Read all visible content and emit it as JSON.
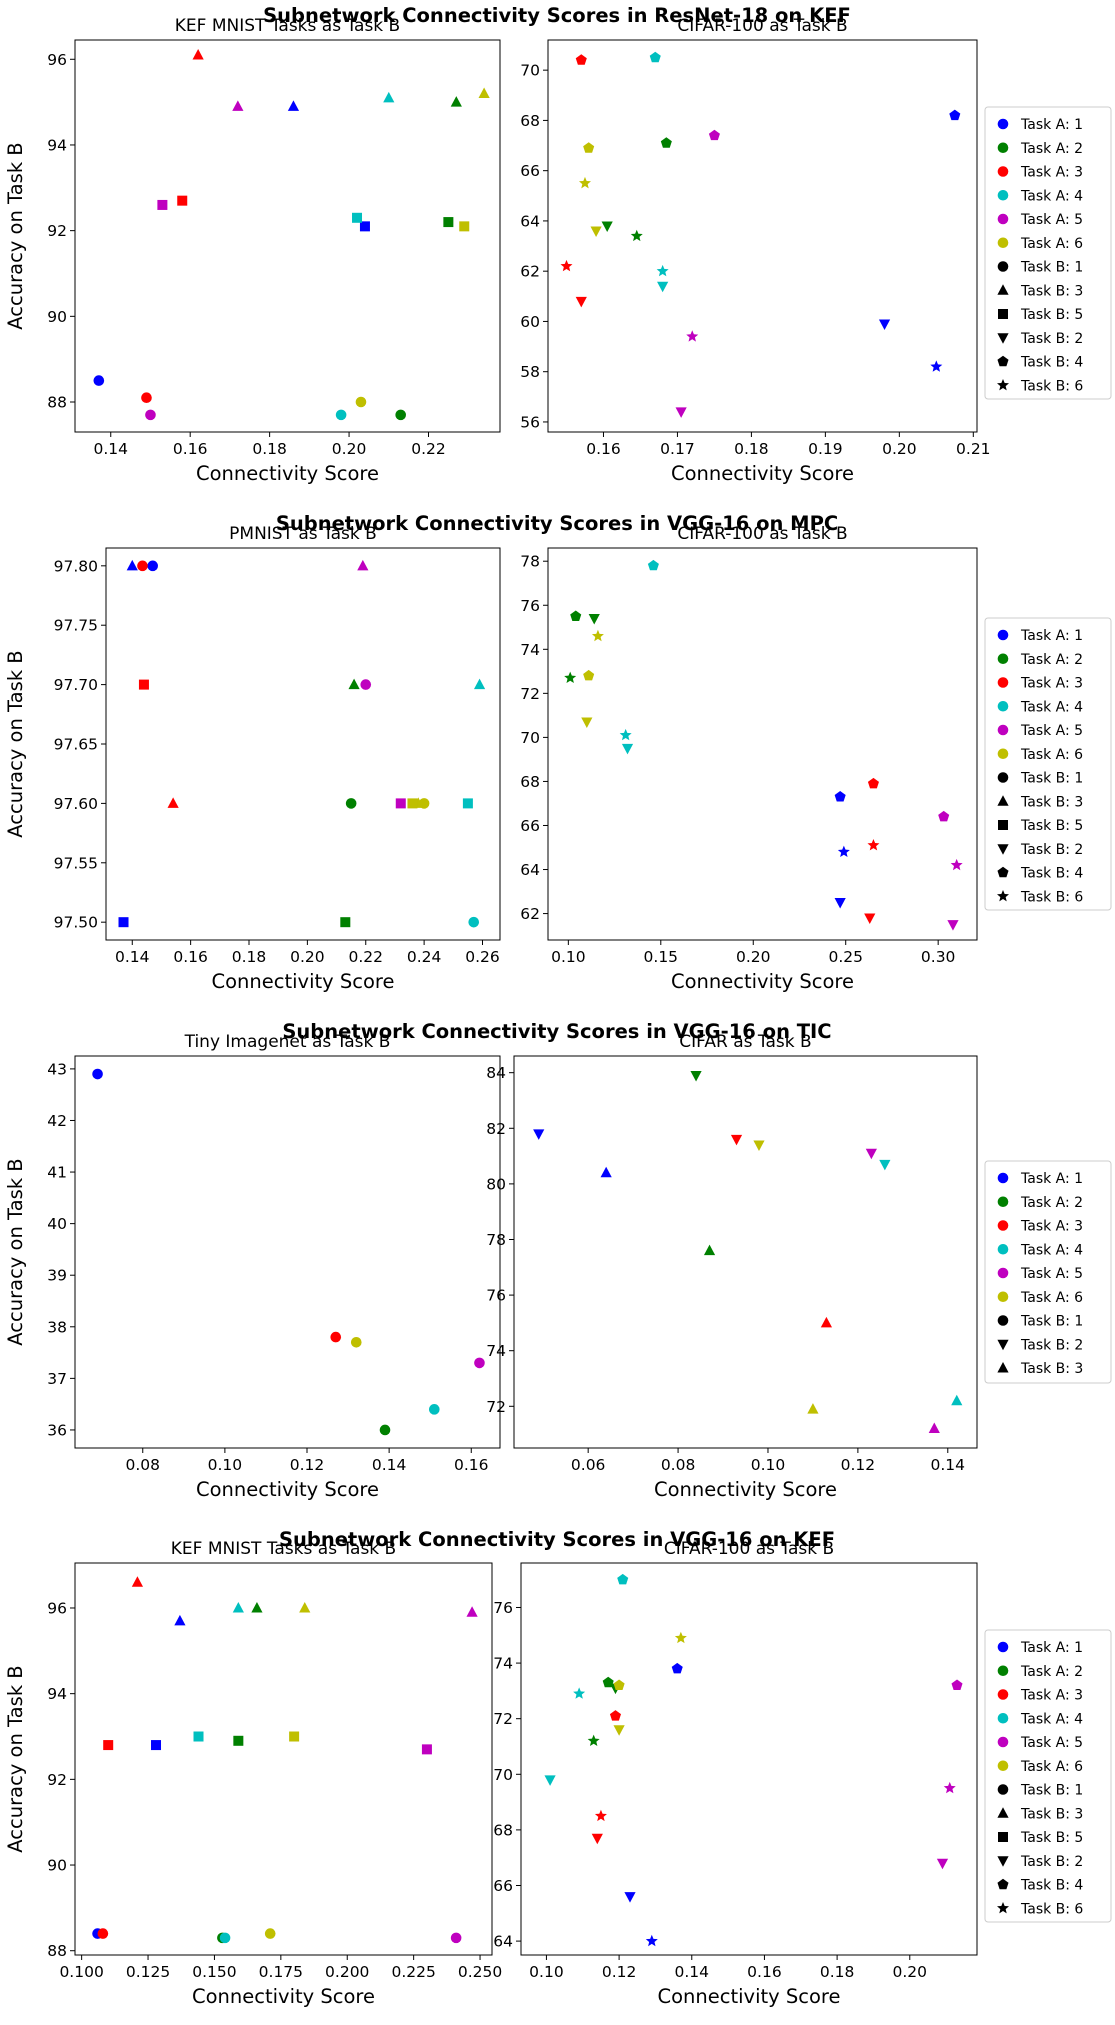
{
  "figure": {
    "section_titles": [
      "Subnetwork Connectivity Scores in ResNet-18 on KEF",
      "Subnetwork Connectivity Scores in VGG-16 on MPC",
      "Subnetwork Connectivity Scores in VGG-16 on TIC",
      "Subnetwork Connectivity Scores in VGG-16 on KEF"
    ]
  },
  "colors": {
    "1": "#0000ff",
    "2": "#008000",
    "3": "#ff0000",
    "4": "#00bfbf",
    "5": "#bf00bf",
    "6": "#bfbf00"
  },
  "marker_shapes": {
    "1": "circle",
    "2": "triangle-down",
    "3": "triangle-up",
    "4": "pentagon",
    "5": "square",
    "6": "star"
  },
  "chart_data": [
    {
      "type": "scatter",
      "title": "KEF MNIST Tasks as Task B",
      "xlabel": "Connectivity Score",
      "ylabel": "Accuracy on Task B",
      "xlim": [
        0.131,
        0.238
      ],
      "ylim": [
        87.3,
        96.45
      ],
      "xticks": [
        "0.14",
        "0.16",
        "0.18",
        "0.20",
        "0.22"
      ],
      "yticks": [
        "88",
        "90",
        "92",
        "94",
        "96"
      ],
      "points": [
        {
          "a": 1,
          "b": 1,
          "x": 0.137,
          "y": 88.5
        },
        {
          "a": 1,
          "b": 3,
          "x": 0.186,
          "y": 94.9
        },
        {
          "a": 1,
          "b": 5,
          "x": 0.204,
          "y": 92.1
        },
        {
          "a": 2,
          "b": 1,
          "x": 0.213,
          "y": 87.7
        },
        {
          "a": 2,
          "b": 3,
          "x": 0.227,
          "y": 95.0
        },
        {
          "a": 2,
          "b": 5,
          "x": 0.225,
          "y": 92.2
        },
        {
          "a": 3,
          "b": 1,
          "x": 0.149,
          "y": 88.1
        },
        {
          "a": 3,
          "b": 3,
          "x": 0.162,
          "y": 96.1
        },
        {
          "a": 3,
          "b": 5,
          "x": 0.158,
          "y": 92.7
        },
        {
          "a": 4,
          "b": 1,
          "x": 0.198,
          "y": 87.7
        },
        {
          "a": 4,
          "b": 3,
          "x": 0.21,
          "y": 95.1
        },
        {
          "a": 4,
          "b": 5,
          "x": 0.202,
          "y": 92.3
        },
        {
          "a": 5,
          "b": 1,
          "x": 0.15,
          "y": 87.7
        },
        {
          "a": 5,
          "b": 3,
          "x": 0.172,
          "y": 94.9
        },
        {
          "a": 5,
          "b": 5,
          "x": 0.153,
          "y": 92.6
        },
        {
          "a": 6,
          "b": 1,
          "x": 0.203,
          "y": 88.0
        },
        {
          "a": 6,
          "b": 3,
          "x": 0.234,
          "y": 95.2
        },
        {
          "a": 6,
          "b": 5,
          "x": 0.229,
          "y": 92.1
        }
      ]
    },
    {
      "type": "scatter",
      "title": "CIFAR-100 as Task B",
      "xlabel": "Connectivity Score",
      "ylabel": "",
      "xlim": [
        0.1525,
        0.2105
      ],
      "ylim": [
        55.6,
        71.2
      ],
      "xticks": [
        "0.16",
        "0.17",
        "0.18",
        "0.19",
        "0.20",
        "0.21"
      ],
      "yticks": [
        "56",
        "58",
        "60",
        "62",
        "64",
        "66",
        "68",
        "70"
      ],
      "legend_position": "right",
      "legend": [
        "Task A: 1",
        "Task A: 2",
        "Task A: 3",
        "Task A: 4",
        "Task A: 5",
        "Task A: 6",
        "Task B: 1",
        "Task B: 3",
        "Task B: 5",
        "Task B: 2",
        "Task B: 4",
        "Task B: 6"
      ],
      "points": [
        {
          "a": 1,
          "b": 2,
          "x": 0.198,
          "y": 59.9
        },
        {
          "a": 1,
          "b": 4,
          "x": 0.2075,
          "y": 68.2
        },
        {
          "a": 1,
          "b": 6,
          "x": 0.205,
          "y": 58.2
        },
        {
          "a": 2,
          "b": 2,
          "x": 0.1605,
          "y": 63.8
        },
        {
          "a": 2,
          "b": 4,
          "x": 0.1685,
          "y": 67.1
        },
        {
          "a": 2,
          "b": 6,
          "x": 0.1645,
          "y": 63.4
        },
        {
          "a": 3,
          "b": 2,
          "x": 0.157,
          "y": 60.8
        },
        {
          "a": 3,
          "b": 4,
          "x": 0.157,
          "y": 70.4
        },
        {
          "a": 3,
          "b": 6,
          "x": 0.155,
          "y": 62.2
        },
        {
          "a": 4,
          "b": 2,
          "x": 0.168,
          "y": 61.4
        },
        {
          "a": 4,
          "b": 4,
          "x": 0.167,
          "y": 70.5
        },
        {
          "a": 4,
          "b": 6,
          "x": 0.168,
          "y": 62.0
        },
        {
          "a": 5,
          "b": 2,
          "x": 0.1705,
          "y": 56.4
        },
        {
          "a": 5,
          "b": 4,
          "x": 0.175,
          "y": 67.4
        },
        {
          "a": 5,
          "b": 6,
          "x": 0.172,
          "y": 59.4
        },
        {
          "a": 6,
          "b": 2,
          "x": 0.159,
          "y": 63.6
        },
        {
          "a": 6,
          "b": 4,
          "x": 0.158,
          "y": 66.9
        },
        {
          "a": 6,
          "b": 6,
          "x": 0.1575,
          "y": 65.5
        }
      ]
    },
    {
      "type": "scatter",
      "title": "PMNIST as Task B",
      "xlabel": "Connectivity Score",
      "ylabel": "Accuracy on Task B",
      "xlim": [
        0.131,
        0.266
      ],
      "ylim": [
        97.485,
        97.815
      ],
      "xticks": [
        "0.14",
        "0.16",
        "0.18",
        "0.20",
        "0.22",
        "0.24",
        "0.26"
      ],
      "yticks": [
        "97.50",
        "97.55",
        "97.60",
        "97.65",
        "97.70",
        "97.75",
        "97.80"
      ],
      "points": [
        {
          "a": 1,
          "b": 1,
          "x": 0.147,
          "y": 97.8
        },
        {
          "a": 1,
          "b": 3,
          "x": 0.14,
          "y": 97.8
        },
        {
          "a": 1,
          "b": 5,
          "x": 0.137,
          "y": 97.5
        },
        {
          "a": 2,
          "b": 1,
          "x": 0.215,
          "y": 97.6
        },
        {
          "a": 2,
          "b": 3,
          "x": 0.216,
          "y": 97.7
        },
        {
          "a": 2,
          "b": 5,
          "x": 0.213,
          "y": 97.5
        },
        {
          "a": 3,
          "b": 1,
          "x": 0.1435,
          "y": 97.8
        },
        {
          "a": 3,
          "b": 3,
          "x": 0.154,
          "y": 97.6
        },
        {
          "a": 3,
          "b": 5,
          "x": 0.144,
          "y": 97.7
        },
        {
          "a": 4,
          "b": 1,
          "x": 0.257,
          "y": 97.5
        },
        {
          "a": 4,
          "b": 3,
          "x": 0.259,
          "y": 97.7
        },
        {
          "a": 4,
          "b": 5,
          "x": 0.255,
          "y": 97.6
        },
        {
          "a": 5,
          "b": 1,
          "x": 0.22,
          "y": 97.7
        },
        {
          "a": 5,
          "b": 3,
          "x": 0.219,
          "y": 97.8
        },
        {
          "a": 5,
          "b": 5,
          "x": 0.232,
          "y": 97.6
        },
        {
          "a": 6,
          "b": 1,
          "x": 0.24,
          "y": 97.6
        },
        {
          "a": 6,
          "b": 3,
          "x": 0.238,
          "y": 97.6
        },
        {
          "a": 6,
          "b": 5,
          "x": 0.236,
          "y": 97.6
        }
      ]
    },
    {
      "type": "scatter",
      "title": "CIFAR-100 as Task B",
      "xlabel": "Connectivity Score",
      "ylabel": "",
      "xlim": [
        0.089,
        0.321
      ],
      "ylim": [
        60.8,
        78.6
      ],
      "xticks": [
        "0.10",
        "0.15",
        "0.20",
        "0.25",
        "0.30"
      ],
      "yticks": [
        "62",
        "64",
        "66",
        "68",
        "70",
        "72",
        "74",
        "76",
        "78"
      ],
      "legend_position": "right",
      "legend": [
        "Task A: 1",
        "Task A: 2",
        "Task A: 3",
        "Task A: 4",
        "Task A: 5",
        "Task A: 6",
        "Task B: 1",
        "Task B: 3",
        "Task B: 5",
        "Task B: 2",
        "Task B: 4",
        "Task B: 6"
      ],
      "points": [
        {
          "a": 1,
          "b": 2,
          "x": 0.247,
          "y": 62.5
        },
        {
          "a": 1,
          "b": 4,
          "x": 0.247,
          "y": 67.3
        },
        {
          "a": 1,
          "b": 6,
          "x": 0.249,
          "y": 64.8
        },
        {
          "a": 2,
          "b": 2,
          "x": 0.114,
          "y": 75.4
        },
        {
          "a": 2,
          "b": 4,
          "x": 0.104,
          "y": 75.5
        },
        {
          "a": 2,
          "b": 6,
          "x": 0.101,
          "y": 72.7
        },
        {
          "a": 3,
          "b": 2,
          "x": 0.263,
          "y": 61.8
        },
        {
          "a": 3,
          "b": 4,
          "x": 0.265,
          "y": 67.9
        },
        {
          "a": 3,
          "b": 6,
          "x": 0.265,
          "y": 65.1
        },
        {
          "a": 4,
          "b": 2,
          "x": 0.132,
          "y": 69.5
        },
        {
          "a": 4,
          "b": 4,
          "x": 0.146,
          "y": 77.8
        },
        {
          "a": 4,
          "b": 6,
          "x": 0.131,
          "y": 70.1
        },
        {
          "a": 5,
          "b": 2,
          "x": 0.308,
          "y": 61.5
        },
        {
          "a": 5,
          "b": 4,
          "x": 0.303,
          "y": 66.4
        },
        {
          "a": 5,
          "b": 6,
          "x": 0.31,
          "y": 64.2
        },
        {
          "a": 6,
          "b": 2,
          "x": 0.11,
          "y": 70.7
        },
        {
          "a": 6,
          "b": 4,
          "x": 0.111,
          "y": 72.8
        },
        {
          "a": 6,
          "b": 6,
          "x": 0.116,
          "y": 74.6
        }
      ]
    },
    {
      "type": "scatter",
      "title": "Tiny Imagenet as Task B",
      "xlabel": "Connectivity Score",
      "ylabel": "Accuracy on Task B",
      "xlim": [
        0.0635,
        0.167
      ],
      "ylim": [
        35.65,
        43.25
      ],
      "xticks": [
        "0.08",
        "0.10",
        "0.12",
        "0.14",
        "0.16"
      ],
      "yticks": [
        "36",
        "37",
        "38",
        "39",
        "40",
        "41",
        "42",
        "43"
      ],
      "points": [
        {
          "a": 1,
          "b": 1,
          "x": 0.069,
          "y": 42.9
        },
        {
          "a": 2,
          "b": 1,
          "x": 0.139,
          "y": 36.0
        },
        {
          "a": 3,
          "b": 1,
          "x": 0.127,
          "y": 37.8
        },
        {
          "a": 4,
          "b": 1,
          "x": 0.151,
          "y": 36.4
        },
        {
          "a": 5,
          "b": 1,
          "x": 0.162,
          "y": 37.3
        },
        {
          "a": 6,
          "b": 1,
          "x": 0.132,
          "y": 37.7
        }
      ]
    },
    {
      "type": "scatter",
      "title": "CIFAR as Task B",
      "xlabel": "Connectivity Score",
      "ylabel": "",
      "xlim": [
        0.0435,
        0.1465
      ],
      "ylim": [
        70.5,
        84.6
      ],
      "xticks": [
        "0.06",
        "0.08",
        "0.10",
        "0.12",
        "0.14"
      ],
      "yticks": [
        "72",
        "74",
        "76",
        "78",
        "80",
        "82",
        "84"
      ],
      "legend_position": "right",
      "legend": [
        "Task A: 1",
        "Task A: 2",
        "Task A: 3",
        "Task A: 4",
        "Task A: 5",
        "Task A: 6",
        "Task B: 1",
        "Task B: 2",
        "Task B: 3"
      ],
      "points": [
        {
          "a": 1,
          "b": 2,
          "x": 0.049,
          "y": 81.8
        },
        {
          "a": 1,
          "b": 3,
          "x": 0.064,
          "y": 80.4
        },
        {
          "a": 2,
          "b": 2,
          "x": 0.084,
          "y": 83.9
        },
        {
          "a": 2,
          "b": 3,
          "x": 0.087,
          "y": 77.6
        },
        {
          "a": 3,
          "b": 2,
          "x": 0.093,
          "y": 81.6
        },
        {
          "a": 3,
          "b": 3,
          "x": 0.113,
          "y": 75.0
        },
        {
          "a": 4,
          "b": 2,
          "x": 0.126,
          "y": 80.7
        },
        {
          "a": 4,
          "b": 3,
          "x": 0.142,
          "y": 72.2
        },
        {
          "a": 5,
          "b": 2,
          "x": 0.123,
          "y": 81.1
        },
        {
          "a": 5,
          "b": 3,
          "x": 0.137,
          "y": 71.2
        },
        {
          "a": 6,
          "b": 2,
          "x": 0.098,
          "y": 81.4
        },
        {
          "a": 6,
          "b": 3,
          "x": 0.11,
          "y": 71.9
        }
      ]
    },
    {
      "type": "scatter",
      "title": "KEF MNIST Tasks as Task B",
      "xlabel": "Connectivity Score",
      "ylabel": "Accuracy on Task B",
      "xlim": [
        0.0975,
        0.2545
      ],
      "ylim": [
        87.9,
        97.05
      ],
      "xticks": [
        "0.100",
        "0.125",
        "0.150",
        "0.175",
        "0.200",
        "0.225",
        "0.250"
      ],
      "yticks": [
        "88",
        "90",
        "92",
        "94",
        "96"
      ],
      "points": [
        {
          "a": 1,
          "b": 1,
          "x": 0.106,
          "y": 88.4
        },
        {
          "a": 1,
          "b": 3,
          "x": 0.137,
          "y": 95.7
        },
        {
          "a": 1,
          "b": 5,
          "x": 0.128,
          "y": 92.8
        },
        {
          "a": 2,
          "b": 1,
          "x": 0.153,
          "y": 88.3
        },
        {
          "a": 2,
          "b": 3,
          "x": 0.166,
          "y": 96.0
        },
        {
          "a": 2,
          "b": 5,
          "x": 0.159,
          "y": 92.9
        },
        {
          "a": 3,
          "b": 1,
          "x": 0.108,
          "y": 88.4
        },
        {
          "a": 3,
          "b": 3,
          "x": 0.121,
          "y": 96.6
        },
        {
          "a": 3,
          "b": 5,
          "x": 0.11,
          "y": 92.8
        },
        {
          "a": 4,
          "b": 1,
          "x": 0.154,
          "y": 88.3
        },
        {
          "a": 4,
          "b": 3,
          "x": 0.159,
          "y": 96.0
        },
        {
          "a": 4,
          "b": 5,
          "x": 0.144,
          "y": 93.0
        },
        {
          "a": 5,
          "b": 1,
          "x": 0.241,
          "y": 88.3
        },
        {
          "a": 5,
          "b": 3,
          "x": 0.247,
          "y": 95.9
        },
        {
          "a": 5,
          "b": 5,
          "x": 0.23,
          "y": 92.7
        },
        {
          "a": 6,
          "b": 1,
          "x": 0.171,
          "y": 88.4
        },
        {
          "a": 6,
          "b": 3,
          "x": 0.184,
          "y": 96.0
        },
        {
          "a": 6,
          "b": 5,
          "x": 0.18,
          "y": 93.0
        }
      ]
    },
    {
      "type": "scatter",
      "title": "CIFAR-100 as Task B",
      "xlabel": "Connectivity Score",
      "ylabel": "",
      "xlim": [
        0.093,
        0.2185
      ],
      "ylim": [
        63.5,
        77.6
      ],
      "xticks": [
        "0.10",
        "0.12",
        "0.14",
        "0.16",
        "0.18",
        "0.20"
      ],
      "yticks": [
        "64",
        "66",
        "68",
        "70",
        "72",
        "74",
        "76"
      ],
      "legend_position": "right",
      "legend": [
        "Task A: 1",
        "Task A: 2",
        "Task A: 3",
        "Task A: 4",
        "Task A: 5",
        "Task A: 6",
        "Task B: 1",
        "Task B: 3",
        "Task B: 5",
        "Task B: 2",
        "Task B: 4",
        "Task B: 6"
      ],
      "points": [
        {
          "a": 1,
          "b": 2,
          "x": 0.123,
          "y": 65.6
        },
        {
          "a": 1,
          "b": 4,
          "x": 0.136,
          "y": 73.8
        },
        {
          "a": 1,
          "b": 6,
          "x": 0.129,
          "y": 64.0
        },
        {
          "a": 2,
          "b": 2,
          "x": 0.119,
          "y": 73.1
        },
        {
          "a": 2,
          "b": 4,
          "x": 0.117,
          "y": 73.3
        },
        {
          "a": 2,
          "b": 6,
          "x": 0.113,
          "y": 71.2
        },
        {
          "a": 3,
          "b": 2,
          "x": 0.114,
          "y": 67.7
        },
        {
          "a": 3,
          "b": 4,
          "x": 0.119,
          "y": 72.1
        },
        {
          "a": 3,
          "b": 6,
          "x": 0.115,
          "y": 68.5
        },
        {
          "a": 4,
          "b": 2,
          "x": 0.101,
          "y": 69.8
        },
        {
          "a": 4,
          "b": 4,
          "x": 0.121,
          "y": 77.0
        },
        {
          "a": 4,
          "b": 6,
          "x": 0.109,
          "y": 72.9
        },
        {
          "a": 5,
          "b": 2,
          "x": 0.209,
          "y": 66.8
        },
        {
          "a": 5,
          "b": 4,
          "x": 0.213,
          "y": 73.2
        },
        {
          "a": 5,
          "b": 6,
          "x": 0.211,
          "y": 69.5
        },
        {
          "a": 6,
          "b": 2,
          "x": 0.12,
          "y": 71.6
        },
        {
          "a": 6,
          "b": 4,
          "x": 0.12,
          "y": 73.2
        },
        {
          "a": 6,
          "b": 6,
          "x": 0.137,
          "y": 74.9
        }
      ]
    }
  ]
}
